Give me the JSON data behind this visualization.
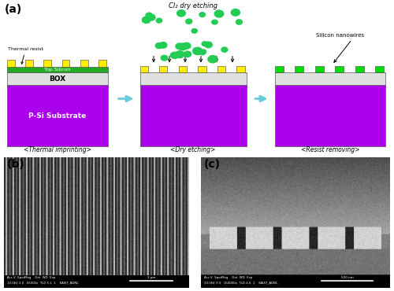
{
  "panel_a_label": "(a)",
  "panel_b_label": "(b)",
  "panel_c_label": "(c)",
  "step1_label": "<Thermal imprinting>",
  "step2_label": "<Dry etching>",
  "step3_label": "<Resist removing>",
  "step2_title": "Cl₂ dry etching",
  "step3_title": "Silicon nanowires",
  "step1_annot": "Thermal resist",
  "step1_annot2": "Top Silicon",
  "step1_box_label": "BOX",
  "step1_substrate": "P-Si Substrate",
  "bg_color": "#ffffff",
  "purple_color": "#aa00ee",
  "green_color": "#00dd00",
  "yellow_color": "#ffee00",
  "box_color": "#e0e0e0",
  "topsi_color": "#22aa22",
  "arrow_color": "#66ccdd",
  "cl2_color": "#22cc55",
  "stripe_dark": 0.18,
  "stripe_mid": 0.38,
  "stripe_light": 0.72
}
